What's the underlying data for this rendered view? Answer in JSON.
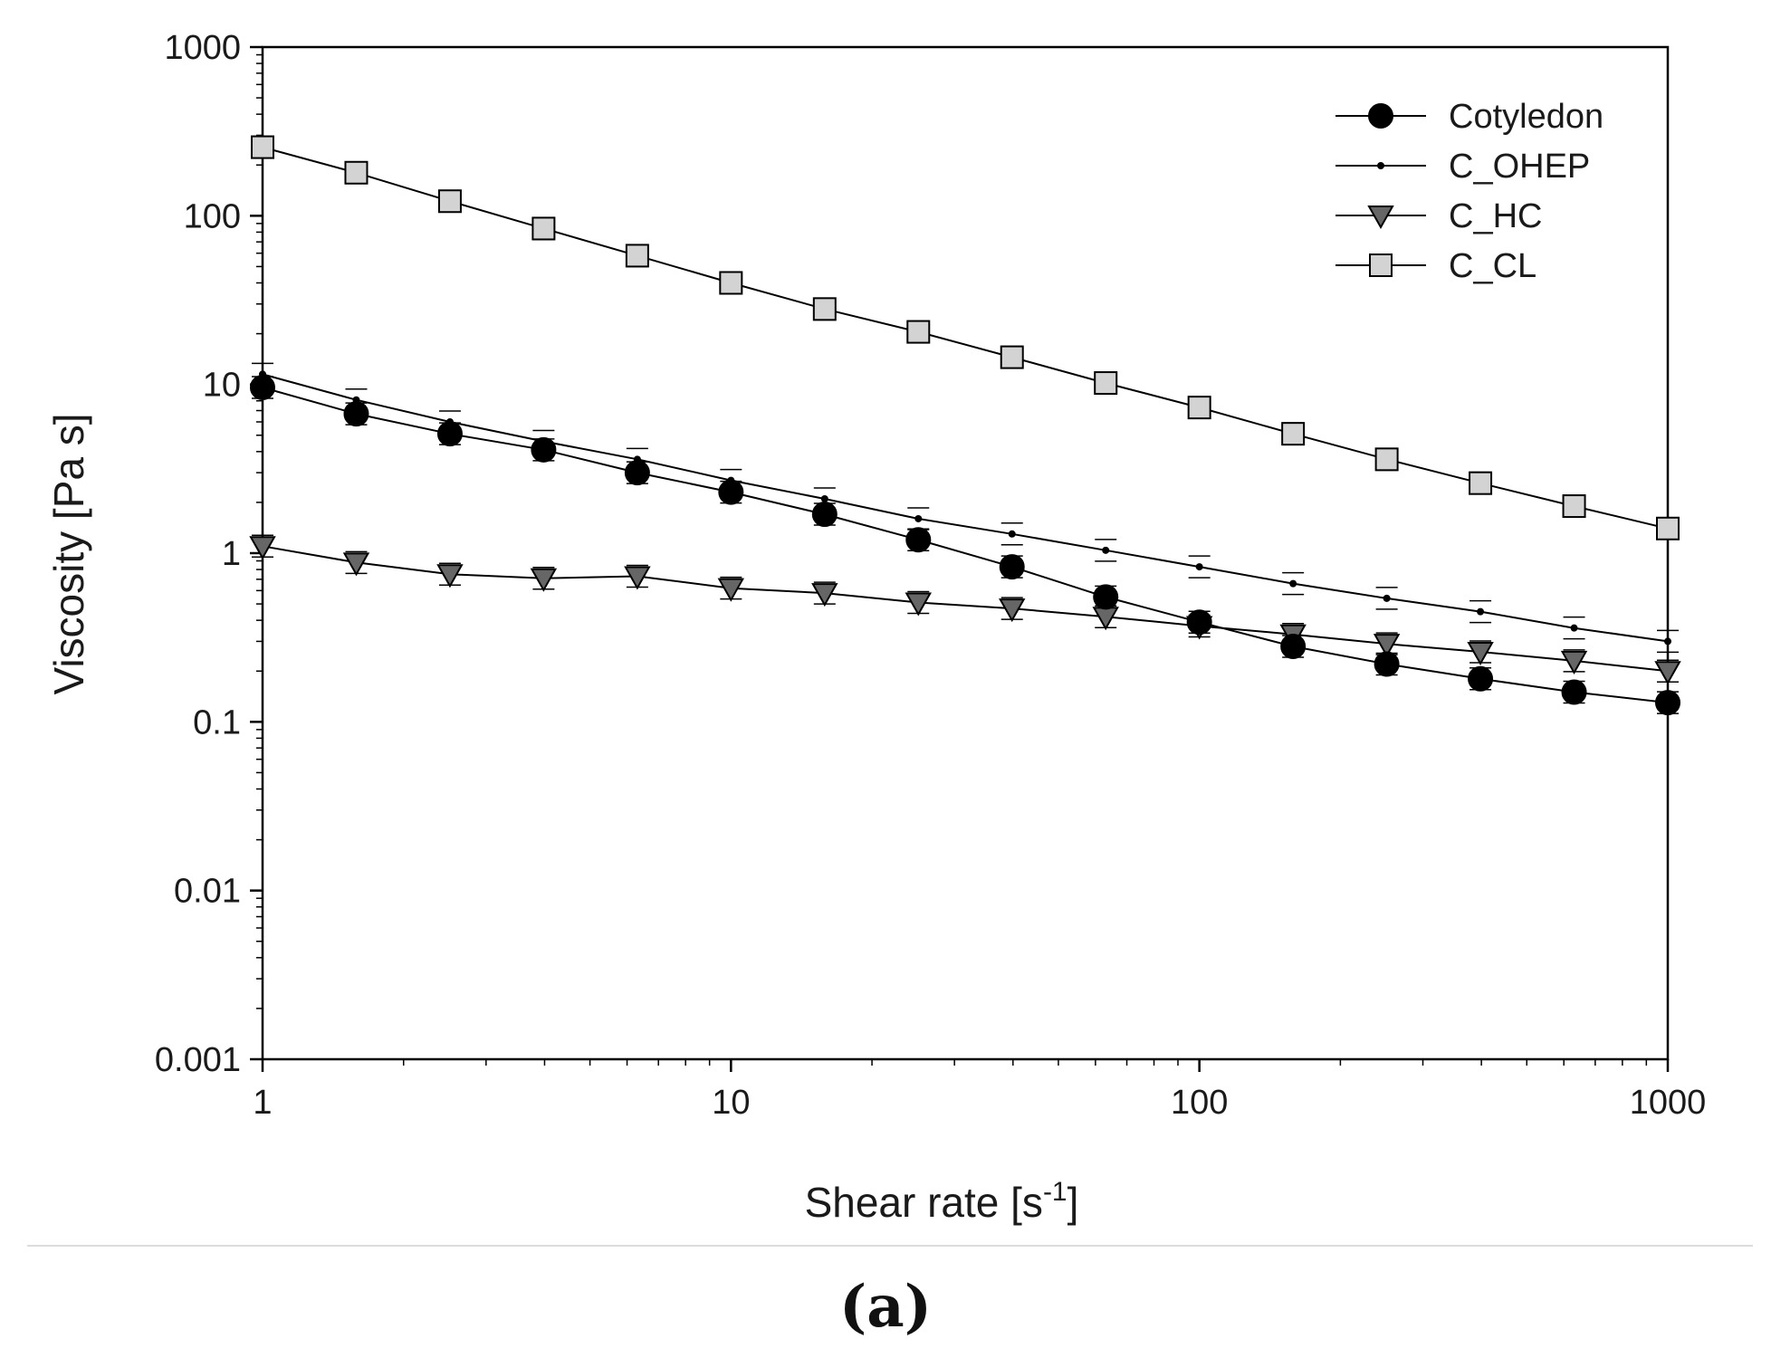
{
  "chart_data": {
    "type": "line",
    "xlabel": "Shear rate [s",
    "xlabel_superscript": "-1",
    "xlabel_suffix": "]",
    "ylabel": "Viscosity [Pa s]",
    "xscale": "log",
    "yscale": "log",
    "xlim": [
      1,
      1000
    ],
    "ylim": [
      0.001,
      1000
    ],
    "x_ticks": [
      "1",
      "10",
      "100",
      "1000"
    ],
    "y_ticks": [
      "0.001",
      "0.01",
      "0.1",
      "1",
      "10",
      "100",
      "1000"
    ],
    "grid": false,
    "legend_position": "top-right",
    "panel_label": "(a)",
    "x": [
      1,
      1.585,
      2.512,
      3.981,
      6.31,
      10,
      15.85,
      25.12,
      39.81,
      63.1,
      100,
      158.5,
      251.2,
      398.1,
      631,
      1000
    ],
    "series": [
      {
        "name": "Cotyledon",
        "marker": "circle",
        "color": "#000000",
        "values": [
          9.6,
          6.7,
          5.1,
          4.1,
          3.0,
          2.3,
          1.7,
          1.2,
          0.83,
          0.55,
          0.39,
          0.28,
          0.22,
          0.18,
          0.15,
          0.13
        ]
      },
      {
        "name": "C_OHEP",
        "marker": "dot",
        "color": "#000000",
        "values": [
          11.5,
          8.1,
          6.0,
          4.6,
          3.6,
          2.7,
          2.1,
          1.6,
          1.3,
          1.04,
          0.83,
          0.66,
          0.54,
          0.45,
          0.36,
          0.3
        ]
      },
      {
        "name": "C_HC",
        "marker": "triangle-down",
        "color": "#666666",
        "values": [
          1.1,
          0.88,
          0.75,
          0.71,
          0.73,
          0.62,
          0.58,
          0.51,
          0.47,
          0.42,
          0.37,
          0.33,
          0.29,
          0.26,
          0.23,
          0.2
        ]
      },
      {
        "name": "C_CL",
        "marker": "square",
        "color": "#d3d3d3",
        "values": [
          255,
          180,
          122,
          84,
          58,
          40,
          28,
          20.5,
          14.5,
          10.2,
          7.3,
          5.1,
          3.6,
          2.6,
          1.9,
          1.4
        ]
      }
    ]
  }
}
